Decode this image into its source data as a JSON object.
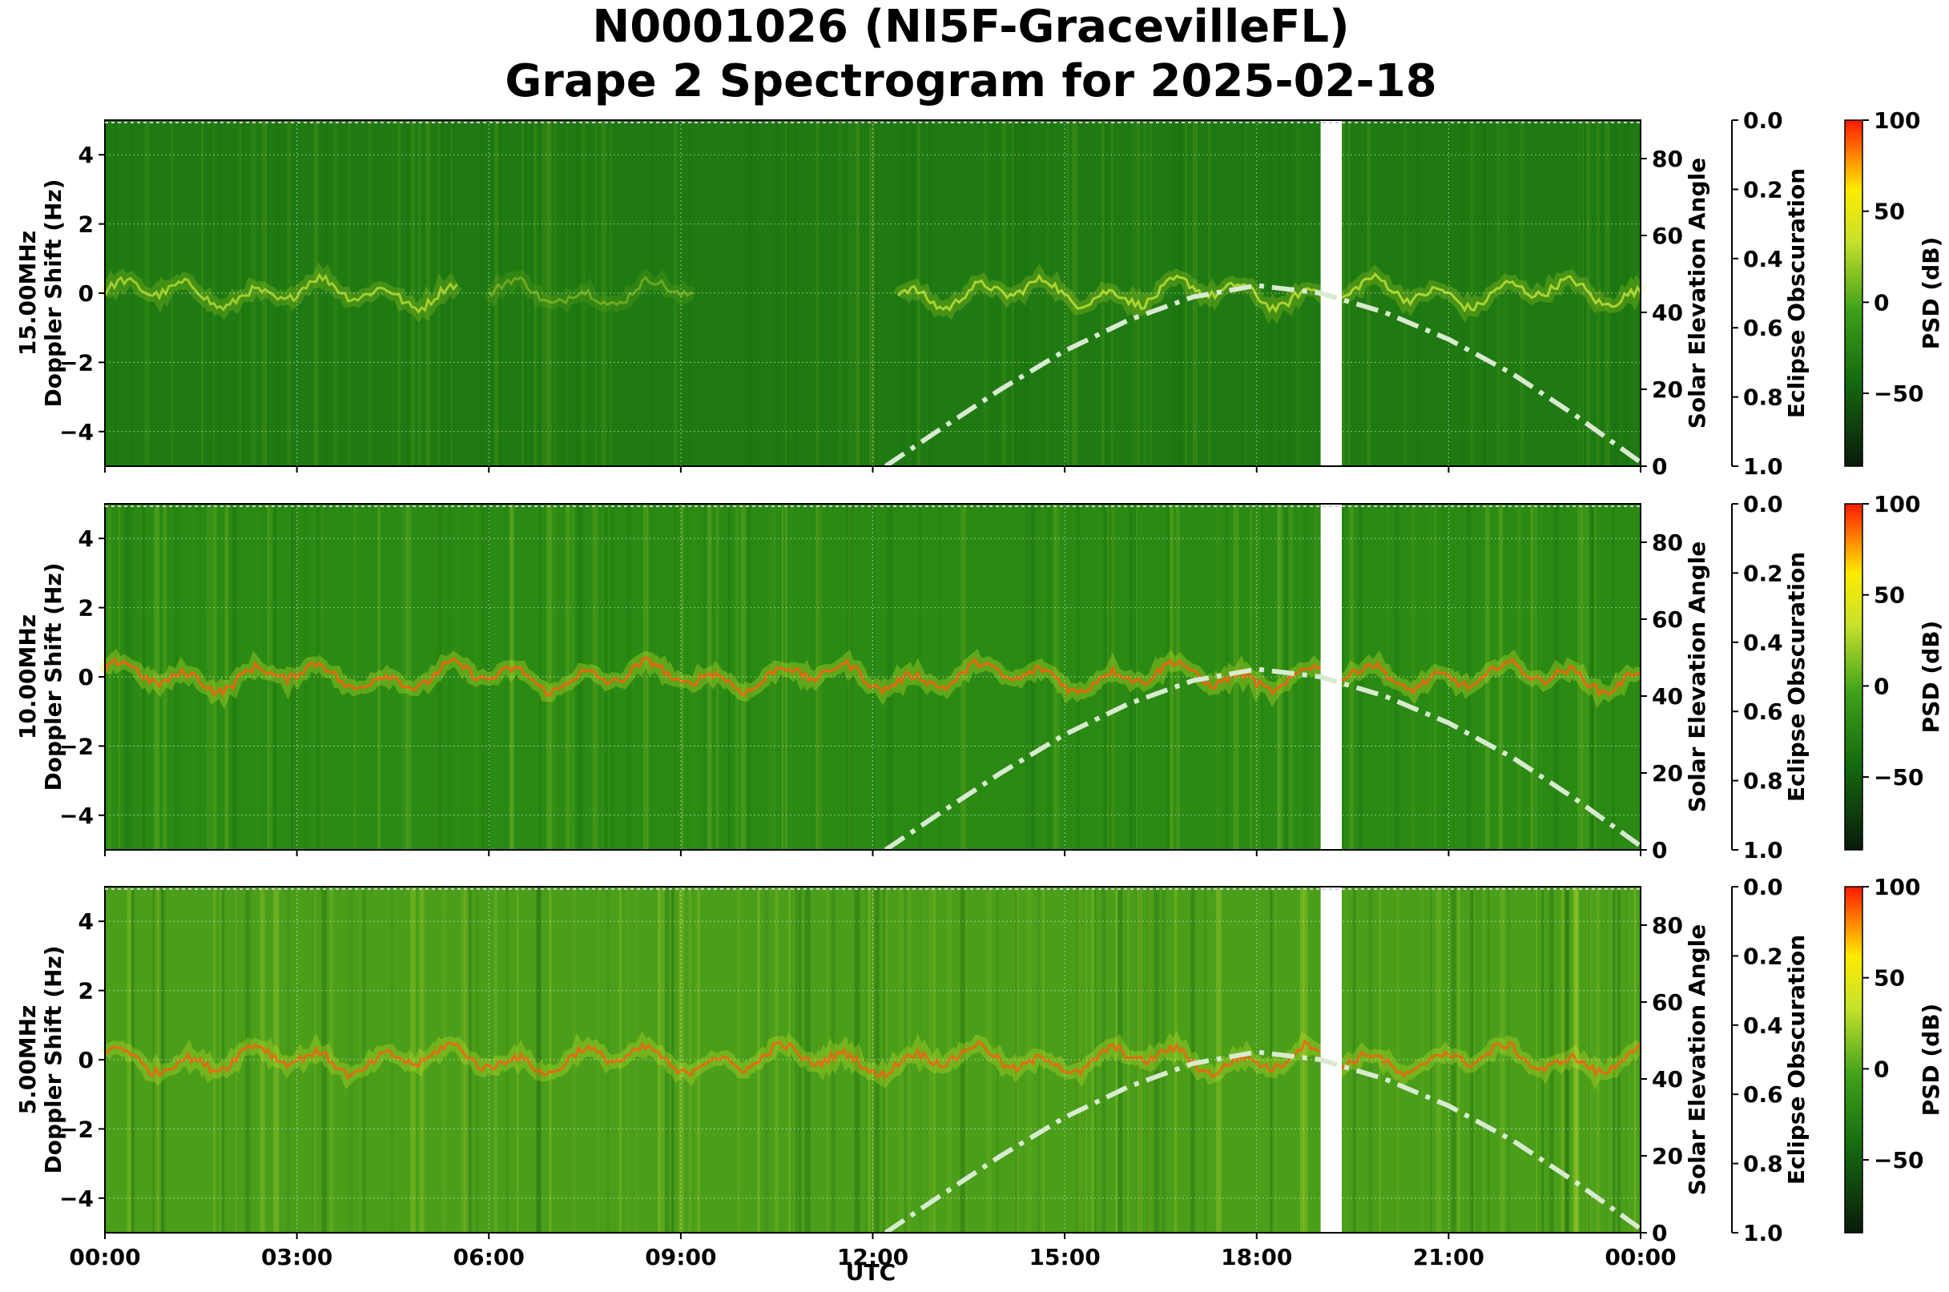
{
  "title_line1": "N0001026 (NI5F-GracevilleFL)",
  "title_line2": "Grape 2 Spectrogram for 2025-02-18",
  "chart_data": {
    "type": "heatmap",
    "xlabel": "UTC",
    "x_ticks": [
      "00:00",
      "03:00",
      "06:00",
      "09:00",
      "12:00",
      "15:00",
      "18:00",
      "21:00",
      "00:00"
    ],
    "xlim_hours": [
      0,
      24
    ],
    "data_gap_hours": [
      19.0,
      19.33
    ],
    "panels": [
      {
        "name": "15.00MHz",
        "ylabel": "15.00MHz\nDoppler Shift (Hz)",
        "ylim": [
          -5,
          5
        ],
        "y_ticks": [
          "4",
          "2",
          "0",
          "−2",
          "−4"
        ],
        "y_tick_values": [
          4,
          2,
          0,
          -2,
          -4
        ],
        "base_color": "#1f7a12",
        "trace": {
          "segments": [
            [
              0,
              5.5
            ],
            [
              6,
              9.2
            ],
            [
              12.4,
              24
            ]
          ],
          "intensity": [
            0.55,
            0.3,
            0.6
          ]
        }
      },
      {
        "name": "10.00MHz",
        "ylabel": "10.00MHz\nDoppler Shift (Hz)",
        "ylim": [
          -5,
          5
        ],
        "y_ticks": [
          "4",
          "2",
          "0",
          "−2",
          "−4"
        ],
        "y_tick_values": [
          4,
          2,
          0,
          -2,
          -4
        ],
        "base_color": "#2a8a14",
        "trace": {
          "segments": [
            [
              0,
              24
            ]
          ],
          "intensity": [
            0.85
          ]
        }
      },
      {
        "name": "5.00MHz",
        "ylabel": "5.00MHz\nDoppler Shift (Hz)",
        "ylim": [
          -5,
          5
        ],
        "y_ticks": [
          "4",
          "2",
          "0",
          "−2",
          "−4"
        ],
        "y_tick_values": [
          4,
          2,
          0,
          -2,
          -4
        ],
        "base_color": "#4a9e1a",
        "trace": {
          "segments": [
            [
              0,
              24
            ]
          ],
          "intensity": [
            0.8
          ]
        }
      }
    ],
    "solar_elevation": {
      "label": "Solar Elevation Angle",
      "ylim": [
        0,
        90
      ],
      "y_ticks": [
        "0",
        "20",
        "40",
        "60",
        "80"
      ],
      "y_tick_values": [
        0,
        20,
        40,
        60,
        80
      ],
      "hours": [
        12.2,
        13,
        14,
        15,
        16,
        17,
        18,
        19,
        20,
        21,
        22,
        23,
        24
      ],
      "values": [
        0,
        9,
        20,
        30,
        38,
        44,
        47,
        45,
        40,
        33,
        24,
        13,
        1
      ],
      "color": "#d8ead0"
    },
    "eclipse_obscuration": {
      "label": "Eclipse Obscuration",
      "ylim": [
        0,
        1
      ],
      "inverted": true,
      "y_ticks": [
        "0.0",
        "0.2",
        "0.4",
        "0.6",
        "0.8",
        "1.0"
      ],
      "y_tick_values": [
        0,
        0.2,
        0.4,
        0.6,
        0.8,
        1.0
      ]
    },
    "colorbar": {
      "label": "PSD (dB)",
      "range": [
        -90,
        100
      ],
      "ticks": [
        "100",
        "50",
        "0",
        "−50"
      ],
      "tick_values": [
        100,
        50,
        0,
        -50
      ],
      "colors": [
        "#0a1a0a",
        "#156b10",
        "#3da01a",
        "#c6e22a",
        "#ffea00",
        "#ff1a00"
      ]
    }
  }
}
